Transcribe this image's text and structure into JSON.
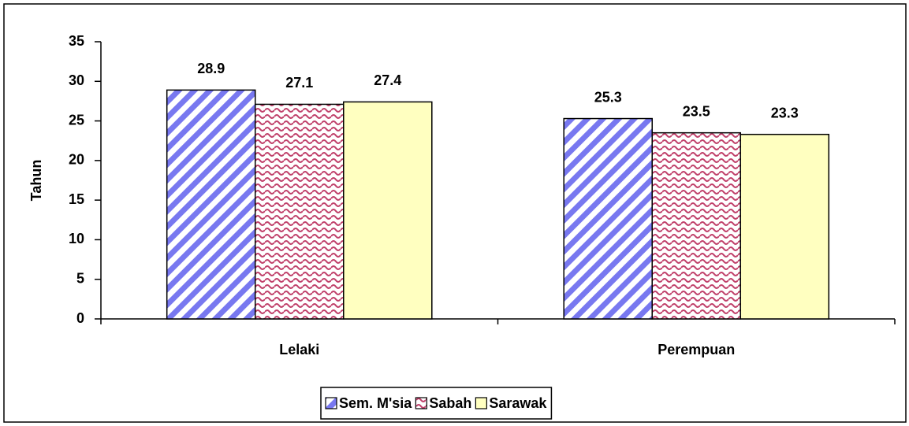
{
  "chart_data": {
    "type": "bar",
    "y_label": "Tahun",
    "categories": [
      "Lelaki",
      "Perempuan"
    ],
    "series": [
      {
        "name": "Sem. M'sia",
        "color": "#7878f0",
        "pattern": "diagonal",
        "values": [
          28.9,
          25.3
        ]
      },
      {
        "name": "Sabah",
        "color": "#c0406a",
        "pattern": "wave",
        "values": [
          27.1,
          23.5
        ]
      },
      {
        "name": "Sarawak",
        "color": "#ffffc0",
        "pattern": "solid",
        "values": [
          27.4,
          23.3
        ]
      }
    ],
    "ylim": [
      0,
      35
    ],
    "yticks": [
      0,
      5,
      10,
      15,
      20,
      25,
      30,
      35
    ],
    "grid": false,
    "legend": "bottom"
  }
}
